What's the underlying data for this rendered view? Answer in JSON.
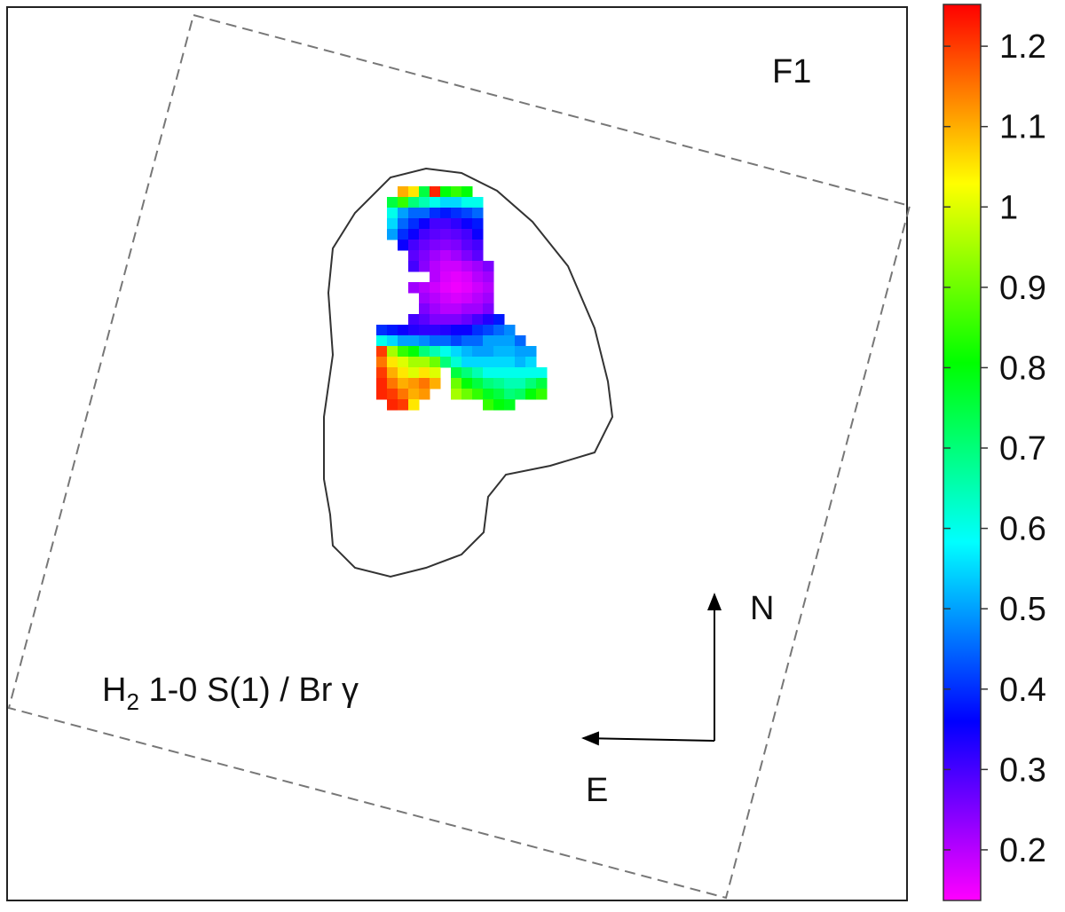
{
  "chart_data": {
    "type": "heatmap",
    "label": {
      "base": "H",
      "subscript": "2",
      "rest": " 1-0 S(1) / Br γ"
    },
    "field_label": "F1",
    "north_label": "N",
    "east_label": "E",
    "colormap": [
      "#ff00ff",
      "#0000ff",
      "#00ffff",
      "#00ff00",
      "#ffff00",
      "#ff0000"
    ],
    "clim": [
      0.137,
      1.252
    ],
    "cticks": [
      0.2,
      0.3,
      0.4,
      0.5,
      0.6,
      0.7,
      0.8,
      0.9,
      1,
      1.1,
      1.2
    ],
    "grid": [
      [
        null,
        null,
        1.1,
        1.05,
        0.75,
        1.22,
        0.8,
        0.85,
        0.8,
        null,
        null,
        null,
        null,
        null,
        null,
        null,
        null
      ],
      [
        null,
        0.75,
        0.85,
        0.7,
        0.65,
        0.6,
        0.55,
        0.55,
        0.6,
        0.6,
        null,
        null,
        null,
        null,
        null,
        null,
        null
      ],
      [
        null,
        0.6,
        0.5,
        0.45,
        0.45,
        0.4,
        0.38,
        0.4,
        0.42,
        0.45,
        null,
        null,
        null,
        null,
        null,
        null,
        null
      ],
      [
        null,
        0.55,
        0.45,
        0.4,
        0.35,
        0.3,
        0.3,
        0.32,
        0.35,
        0.38,
        null,
        null,
        null,
        null,
        null,
        null,
        null
      ],
      [
        null,
        0.5,
        0.4,
        0.35,
        0.3,
        0.28,
        0.27,
        0.28,
        0.3,
        0.35,
        null,
        null,
        null,
        null,
        null,
        null,
        null
      ],
      [
        null,
        null,
        0.35,
        0.3,
        0.27,
        0.25,
        0.24,
        0.25,
        0.28,
        0.3,
        null,
        null,
        null,
        null,
        null,
        null,
        null
      ],
      [
        null,
        null,
        null,
        0.28,
        0.25,
        0.22,
        0.2,
        0.22,
        0.25,
        0.28,
        null,
        null,
        null,
        null,
        null,
        null,
        null
      ],
      [
        null,
        null,
        null,
        0.3,
        0.24,
        0.2,
        0.18,
        0.18,
        0.2,
        0.22,
        0.25,
        null,
        null,
        null,
        null,
        null,
        null
      ],
      [
        null,
        null,
        null,
        null,
        null,
        0.2,
        0.17,
        0.16,
        0.17,
        0.2,
        0.22,
        null,
        null,
        null,
        null,
        null,
        null
      ],
      [
        null,
        null,
        null,
        0.22,
        0.2,
        0.18,
        0.16,
        0.15,
        0.16,
        0.18,
        0.2,
        null,
        null,
        null,
        null,
        null,
        null
      ],
      [
        null,
        null,
        null,
        null,
        0.22,
        0.2,
        0.18,
        0.17,
        0.18,
        0.2,
        0.22,
        null,
        null,
        null,
        null,
        null,
        null
      ],
      [
        null,
        null,
        null,
        null,
        0.25,
        0.22,
        0.2,
        0.2,
        0.22,
        0.22,
        0.25,
        null,
        null,
        null,
        null,
        null,
        null
      ],
      [
        null,
        null,
        null,
        0.3,
        0.28,
        0.25,
        0.25,
        0.25,
        0.27,
        0.3,
        0.33,
        0.38,
        null,
        null,
        null,
        null,
        null
      ],
      [
        0.4,
        0.38,
        0.35,
        0.33,
        0.32,
        0.32,
        0.33,
        0.35,
        0.35,
        0.4,
        0.42,
        0.45,
        0.48,
        null,
        null,
        null,
        null
      ],
      [
        0.6,
        0.55,
        0.5,
        0.5,
        0.48,
        0.45,
        0.45,
        0.42,
        0.45,
        0.45,
        0.5,
        0.5,
        0.5,
        0.45,
        null,
        null,
        null
      ],
      [
        1.2,
        0.95,
        0.85,
        0.8,
        0.7,
        0.65,
        0.6,
        0.55,
        0.52,
        0.5,
        0.5,
        0.52,
        0.52,
        0.5,
        0.5,
        null,
        null
      ],
      [
        1.15,
        1.05,
        1.0,
        0.95,
        0.95,
        0.9,
        0.7,
        0.62,
        0.55,
        0.55,
        0.55,
        0.55,
        0.55,
        0.52,
        0.55,
        null,
        null
      ],
      [
        1.2,
        1.1,
        1.05,
        1.0,
        1.05,
        1.0,
        null,
        0.75,
        0.7,
        0.65,
        0.6,
        0.6,
        0.6,
        0.6,
        0.6,
        0.6,
        null
      ],
      [
        1.22,
        1.15,
        1.1,
        1.12,
        1.15,
        1.1,
        null,
        0.9,
        0.8,
        0.75,
        0.7,
        0.68,
        0.65,
        0.65,
        0.7,
        0.75,
        null
      ],
      [
        1.22,
        1.2,
        1.15,
        1.1,
        1.12,
        null,
        null,
        0.95,
        0.9,
        0.85,
        0.78,
        0.75,
        0.7,
        0.72,
        0.8,
        0.85,
        null
      ],
      [
        null,
        1.22,
        1.2,
        1.05,
        null,
        null,
        null,
        null,
        null,
        null,
        0.85,
        0.8,
        0.78,
        null,
        null,
        null,
        null
      ]
    ]
  }
}
